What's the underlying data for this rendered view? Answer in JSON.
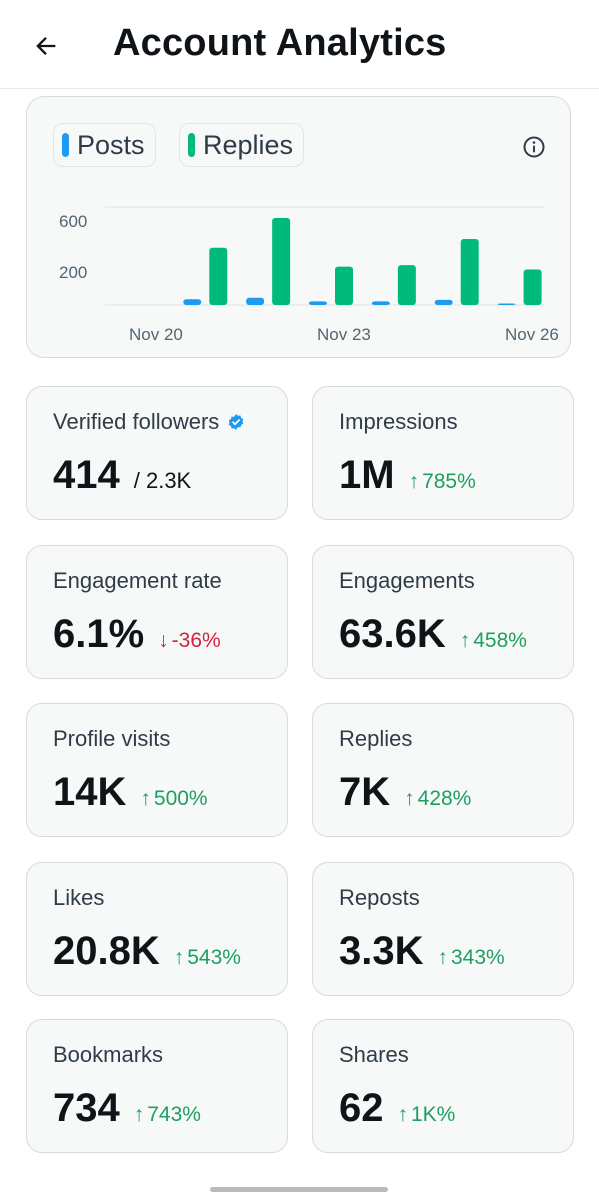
{
  "header": {
    "title": "Account Analytics"
  },
  "chart": {
    "legend": [
      {
        "label": "Posts",
        "color": "#1d9bf0"
      },
      {
        "label": "Replies",
        "color": "#00ba7c"
      }
    ]
  },
  "chart_data": {
    "type": "bar",
    "categories": [
      "Nov 20",
      "Nov 21",
      "Nov 22",
      "Nov 23",
      "Nov 24",
      "Nov 25",
      "Nov 26"
    ],
    "x_tick_labels": [
      "Nov 20",
      "Nov 23",
      "Nov 26"
    ],
    "y_tick_labels": [
      "600",
      "200"
    ],
    "ylim": [
      0,
      700
    ],
    "grid": true,
    "series": [
      {
        "name": "Posts",
        "color": "#1d9bf0",
        "values": [
          0,
          40,
          50,
          25,
          25,
          35,
          10
        ]
      },
      {
        "name": "Replies",
        "color": "#00ba7c",
        "values": [
          0,
          395,
          600,
          265,
          275,
          455,
          245
        ]
      }
    ]
  },
  "stats": [
    {
      "label": "Verified followers",
      "value": "414",
      "sub": "/ 2.3K",
      "verified": true
    },
    {
      "label": "Impressions",
      "value": "1M",
      "change": "785%",
      "direction": "up"
    },
    {
      "label": "Engagement rate",
      "value": "6.1%",
      "change": "-36%",
      "direction": "down"
    },
    {
      "label": "Engagements",
      "value": "63.6K",
      "change": "458%",
      "direction": "up"
    },
    {
      "label": "Profile visits",
      "value": "14K",
      "change": "500%",
      "direction": "up"
    },
    {
      "label": "Replies",
      "value": "7K",
      "change": "428%",
      "direction": "up"
    },
    {
      "label": "Likes",
      "value": "20.8K",
      "change": "543%",
      "direction": "up"
    },
    {
      "label": "Reposts",
      "value": "3.3K",
      "change": "343%",
      "direction": "up"
    },
    {
      "label": "Bookmarks",
      "value": "734",
      "change": "743%",
      "direction": "up"
    },
    {
      "label": "Shares",
      "value": "62",
      "change": "1K%",
      "direction": "up"
    }
  ],
  "colors": {
    "up": "#1f9e61",
    "down": "#d0243f",
    "accent": "#1d9bf0"
  }
}
